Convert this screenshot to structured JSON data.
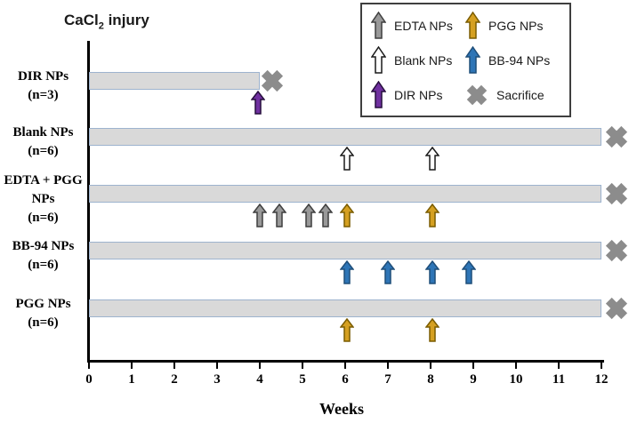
{
  "figure": {
    "title": {
      "part1": "CaCl",
      "sub": "2",
      "part2": " injury"
    },
    "xlabel": "Weeks"
  },
  "chart_data": {
    "type": "bar",
    "subtype": "horizontal-timeline-gantt",
    "title": "CaCl2 injury",
    "xlabel": "Weeks",
    "xlim": [
      0,
      12
    ],
    "x_ticks": [
      0,
      1,
      2,
      3,
      4,
      5,
      6,
      7,
      8,
      9,
      10,
      11,
      12
    ],
    "grid": false,
    "legend_position": "top-right",
    "rows": [
      {
        "label_lines": [
          "DIR NPs",
          "(n=3)"
        ],
        "bar_start_week": 0,
        "bar_end_week": 4,
        "sacrifice_week": 4.3,
        "injections": [
          {
            "type": "DIR",
            "week": 3.95
          }
        ]
      },
      {
        "label_lines": [
          "Blank NPs",
          "(n=6)"
        ],
        "bar_start_week": 0,
        "bar_end_week": 12,
        "sacrifice_week": 12.35,
        "injections": [
          {
            "type": "Blank",
            "week": 6.05
          },
          {
            "type": "Blank",
            "week": 8.05
          }
        ]
      },
      {
        "label_lines": [
          "EDTA + PGG",
          "NPs",
          "(n=6)"
        ],
        "bar_start_week": 0,
        "bar_end_week": 12,
        "sacrifice_week": 12.35,
        "injections": [
          {
            "type": "EDTA",
            "week": 4.0
          },
          {
            "type": "EDTA",
            "week": 4.45
          },
          {
            "type": "EDTA",
            "week": 5.15
          },
          {
            "type": "EDTA",
            "week": 5.55
          },
          {
            "type": "PGG",
            "week": 6.05
          },
          {
            "type": "PGG",
            "week": 8.05
          }
        ]
      },
      {
        "label_lines": [
          "BB-94 NPs",
          "(n=6)"
        ],
        "bar_start_week": 0,
        "bar_end_week": 12,
        "sacrifice_week": 12.35,
        "injections": [
          {
            "type": "BB94",
            "week": 6.05
          },
          {
            "type": "BB94",
            "week": 7.0
          },
          {
            "type": "BB94",
            "week": 8.05
          },
          {
            "type": "BB94",
            "week": 8.9
          }
        ]
      },
      {
        "label_lines": [
          "PGG NPs",
          "(n=6)"
        ],
        "bar_start_week": 0,
        "bar_end_week": 12,
        "sacrifice_week": 12.35,
        "injections": [
          {
            "type": "PGG",
            "week": 6.05
          },
          {
            "type": "PGG",
            "week": 8.05
          }
        ]
      }
    ],
    "legend": [
      {
        "type": "EDTA",
        "label": "EDTA NPs"
      },
      {
        "type": "PGG",
        "label": "PGG NPs"
      },
      {
        "type": "Blank",
        "label": "Blank NPs"
      },
      {
        "type": "BB94",
        "label": "BB-94 NPs"
      },
      {
        "type": "DIR",
        "label": "DIR NPs"
      },
      {
        "type": "Sacrifice",
        "label": "Sacrifice"
      }
    ],
    "colors": {
      "bar_fill": "#D9D9D9",
      "bar_border": "#9DB3CE",
      "axis": "#000000",
      "markers": {
        "EDTA": {
          "fill": "#999999",
          "stroke": "#3F3F3F"
        },
        "Blank": {
          "fill": "#FFFFFF",
          "stroke": "#1A1A1A"
        },
        "DIR": {
          "fill": "#7030A0",
          "stroke": "#260E3D"
        },
        "PGG": {
          "fill": "#D5A021",
          "stroke": "#7A5C00"
        },
        "BB94": {
          "fill": "#2E75B6",
          "stroke": "#1F4E79"
        },
        "Sacrifice": {
          "fill": "#8C8C8C",
          "stroke": "none"
        }
      }
    }
  }
}
